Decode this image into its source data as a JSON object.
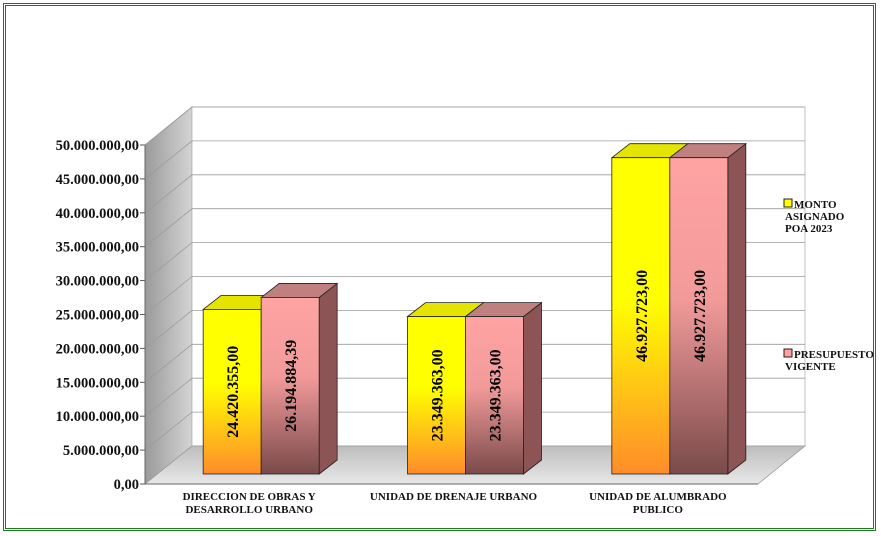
{
  "chart_data": {
    "type": "bar",
    "title": "",
    "xlabel": "",
    "ylabel": "",
    "ylim": [
      0,
      50000000
    ],
    "ytick_step": 5000000,
    "yticks": [
      "0,00",
      "5.000.000,00",
      "10.000.000,00",
      "15.000.000,00",
      "20.000.000,00",
      "25.000.000,00",
      "30.000.000,00",
      "35.000.000,00",
      "40.000.000,00",
      "45.000.000,00",
      "50.000.000,00"
    ],
    "categories": [
      [
        "DIRECCION DE OBRAS Y",
        "DESARROLLO URBANO"
      ],
      [
        "UNIDAD DE DRENAJE URBANO"
      ],
      [
        "UNIDAD DE ALUMBRADO",
        "PUBLICO"
      ]
    ],
    "series": [
      {
        "name": [
          "MONTO",
          "ASIGNADO",
          "POA 2023"
        ],
        "values": [
          24420355.0,
          23349363.0,
          46927723.0
        ],
        "labels": [
          "24.420.355,00",
          "23.349.363,00",
          "46.927.723,00"
        ],
        "color": "#ffff00",
        "color_bottom": "#ff9a2e"
      },
      {
        "name": [
          "PRESUPUESTO",
          "VIGENTE"
        ],
        "values": [
          26194884.39,
          23349363.0,
          46927723.0
        ],
        "labels": [
          "26.194.884,39",
          "23.349.363,00",
          "46.927.723,00"
        ],
        "color": "#ff9f9f",
        "color_bottom": "#7a4545"
      }
    ],
    "grid": true,
    "legend": "right",
    "style": "3d-clustered-column"
  }
}
